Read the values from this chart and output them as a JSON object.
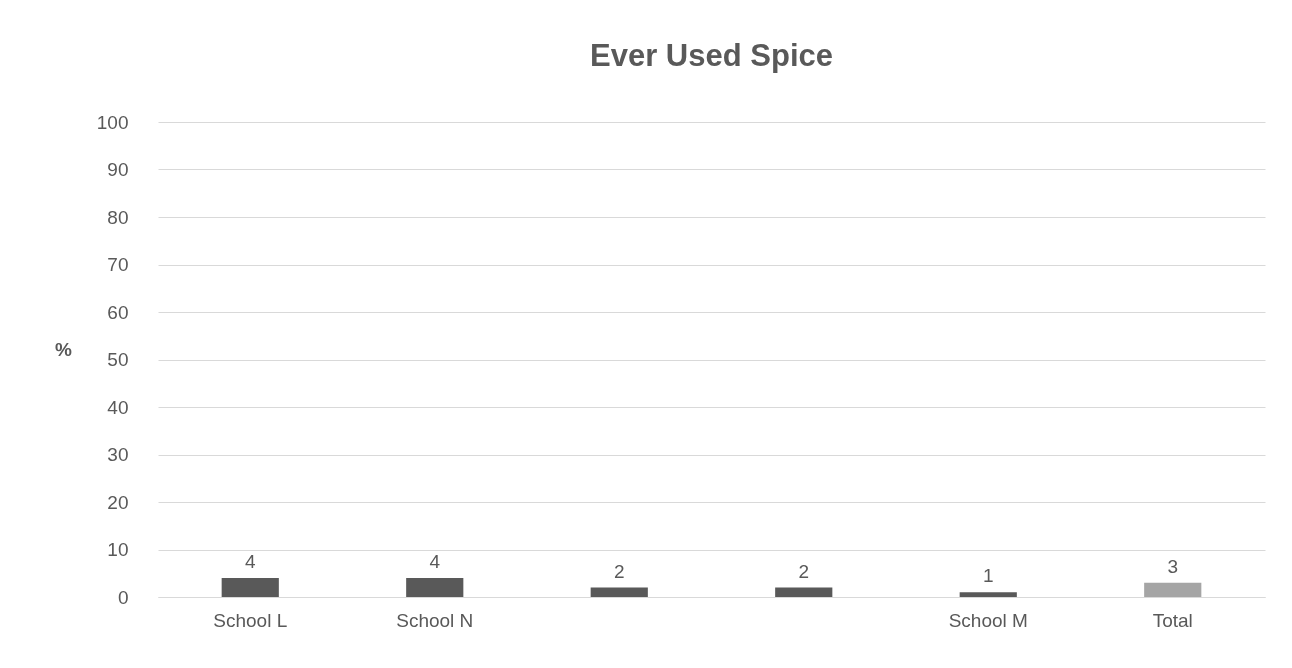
{
  "chart_data": {
    "type": "bar",
    "title": "Ever Used Spice",
    "ylabel": "%",
    "categories": [
      "School L",
      "School N",
      null,
      null,
      "School M",
      "Total"
    ],
    "values": [
      4,
      4,
      2,
      2,
      1,
      3
    ],
    "colors": [
      "#595959",
      "#595959",
      "#595959",
      "#595959",
      "#595959",
      "#a5a5a5"
    ],
    "ylim": [
      0,
      100
    ],
    "yticks": [
      0,
      10,
      20,
      30,
      40,
      50,
      60,
      70,
      80,
      90,
      100
    ],
    "grid": "y",
    "data_labels": true
  }
}
